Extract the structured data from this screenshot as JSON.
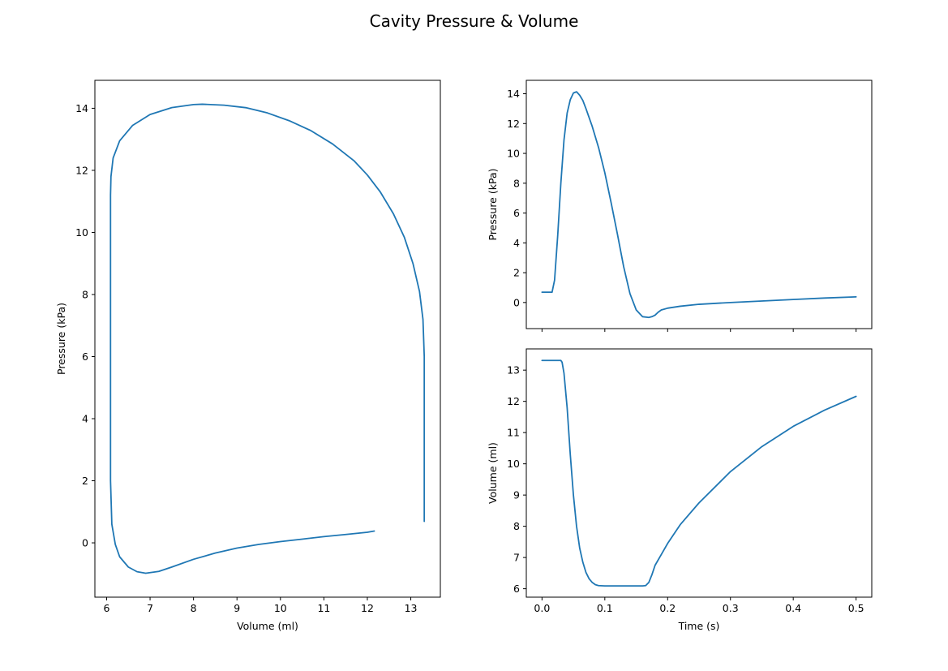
{
  "figure": {
    "title": "Cavity Pressure & Volume"
  },
  "colors": {
    "series": "#1f77b4",
    "frame": "#000000",
    "background": "#ffffff"
  },
  "chart_data": [
    {
      "id": "pv_loop",
      "type": "line",
      "title": "",
      "xlabel": "Volume (ml)",
      "ylabel": "Pressure (kPa)",
      "xlim": [
        5.73,
        13.68
      ],
      "ylim": [
        -1.75,
        14.9
      ],
      "xticks": [
        6,
        7,
        8,
        9,
        10,
        11,
        12,
        13
      ],
      "yticks": [
        0,
        2,
        4,
        6,
        8,
        10,
        12,
        14
      ],
      "grid": false,
      "series": [
        {
          "x": [
            12.16,
            12.0,
            11.5,
            11.0,
            10.5,
            10.0,
            9.5,
            9.0,
            8.5,
            8.0,
            7.5,
            7.2,
            6.9,
            6.7,
            6.5,
            6.3,
            6.2,
            6.12,
            6.09,
            6.09,
            6.09,
            6.09,
            6.09,
            6.1,
            6.15,
            6.3,
            6.6,
            7.0,
            7.5,
            8.0,
            8.2,
            8.7,
            9.2,
            9.7,
            10.2,
            10.7,
            11.2,
            11.7,
            12.0,
            12.3,
            12.6,
            12.85,
            13.05,
            13.2,
            13.28,
            13.31,
            13.31,
            13.31,
            13.31,
            13.31,
            13.31
          ],
          "y": [
            0.38,
            0.34,
            0.27,
            0.2,
            0.12,
            0.04,
            -0.05,
            -0.17,
            -0.33,
            -0.53,
            -0.78,
            -0.92,
            -0.98,
            -0.93,
            -0.78,
            -0.45,
            -0.05,
            0.6,
            2.0,
            5.0,
            8.0,
            10.0,
            11.2,
            11.8,
            12.4,
            12.95,
            13.45,
            13.8,
            14.02,
            14.12,
            14.13,
            14.1,
            14.02,
            13.85,
            13.6,
            13.28,
            12.85,
            12.3,
            11.85,
            11.3,
            10.6,
            9.85,
            9.0,
            8.1,
            7.2,
            6.0,
            5.0,
            4.0,
            2.5,
            1.3,
            0.69
          ]
        }
      ]
    },
    {
      "id": "pressure_time",
      "type": "line",
      "title": "",
      "xlabel": "",
      "ylabel": "Pressure (kPa)",
      "xlim": [
        -0.025,
        0.525
      ],
      "ylim": [
        -1.75,
        14.9
      ],
      "xticks": [
        0.0,
        0.1,
        0.2,
        0.3,
        0.4,
        0.5
      ],
      "yticks": [
        0,
        2,
        4,
        6,
        8,
        10,
        12,
        14
      ],
      "show_xtick_labels": false,
      "grid": false,
      "series": [
        {
          "x": [
            0.0,
            0.01,
            0.016,
            0.02,
            0.025,
            0.03,
            0.035,
            0.04,
            0.045,
            0.05,
            0.055,
            0.06,
            0.065,
            0.07,
            0.08,
            0.09,
            0.1,
            0.11,
            0.12,
            0.13,
            0.14,
            0.15,
            0.16,
            0.17,
            0.175,
            0.18,
            0.185,
            0.19,
            0.2,
            0.22,
            0.25,
            0.3,
            0.35,
            0.4,
            0.45,
            0.5
          ],
          "y": [
            0.69,
            0.69,
            0.69,
            1.5,
            4.5,
            8.0,
            10.9,
            12.7,
            13.6,
            14.05,
            14.13,
            13.9,
            13.55,
            13.0,
            11.8,
            10.4,
            8.7,
            6.7,
            4.6,
            2.4,
            0.6,
            -0.5,
            -0.95,
            -1.0,
            -0.95,
            -0.85,
            -0.65,
            -0.5,
            -0.38,
            -0.25,
            -0.12,
            -0.0,
            0.1,
            0.2,
            0.3,
            0.38
          ]
        }
      ]
    },
    {
      "id": "volume_time",
      "type": "line",
      "title": "",
      "xlabel": "Time (s)",
      "ylabel": "Volume (ml)",
      "xlim": [
        -0.025,
        0.525
      ],
      "ylim": [
        5.73,
        13.68
      ],
      "xticks": [
        0.0,
        0.1,
        0.2,
        0.3,
        0.4,
        0.5
      ],
      "yticks": [
        6,
        7,
        8,
        9,
        10,
        11,
        12,
        13
      ],
      "grid": false,
      "series": [
        {
          "x": [
            0.0,
            0.02,
            0.03,
            0.032,
            0.035,
            0.04,
            0.045,
            0.05,
            0.055,
            0.06,
            0.065,
            0.07,
            0.075,
            0.08,
            0.085,
            0.09,
            0.1,
            0.12,
            0.14,
            0.16,
            0.165,
            0.17,
            0.175,
            0.18,
            0.19,
            0.2,
            0.22,
            0.25,
            0.3,
            0.35,
            0.4,
            0.45,
            0.5
          ],
          "y": [
            13.31,
            13.31,
            13.31,
            13.25,
            12.9,
            11.8,
            10.3,
            9.0,
            8.0,
            7.3,
            6.85,
            6.52,
            6.32,
            6.2,
            6.13,
            6.1,
            6.09,
            6.09,
            6.09,
            6.09,
            6.1,
            6.2,
            6.45,
            6.75,
            7.1,
            7.45,
            8.05,
            8.75,
            9.75,
            10.55,
            11.2,
            11.72,
            12.16
          ]
        }
      ]
    }
  ]
}
